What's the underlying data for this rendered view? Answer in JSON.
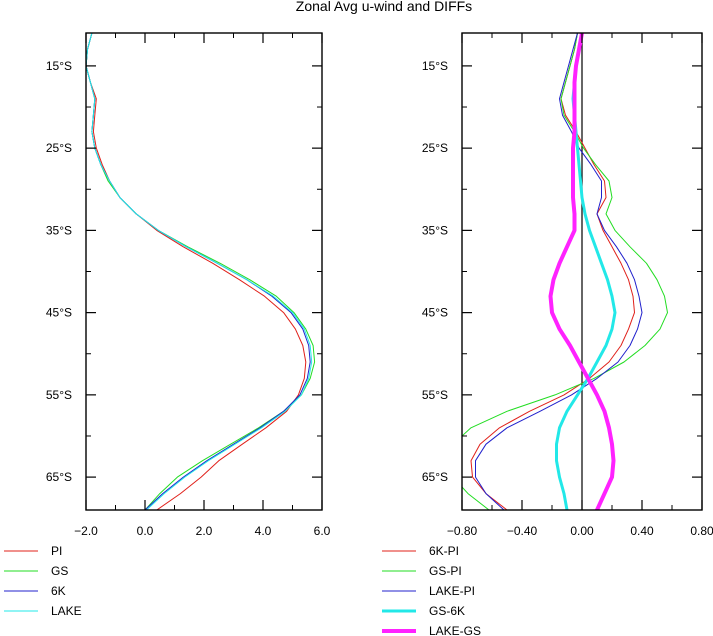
{
  "title": "Zonal Avg u-wind and DIFFs",
  "chart_data": [
    {
      "type": "line",
      "title": "Zonal Avg u-wind and DIFFs",
      "orientation": "profile (value on x-axis, latitude on y-axis)",
      "xlabel": "",
      "ylabel": "",
      "xlim": [
        -2.0,
        6.0
      ],
      "ylim": [
        -69,
        -11
      ],
      "x_ticks": [
        -2.0,
        0.0,
        2.0,
        4.0,
        6.0
      ],
      "x_tick_labels": [
        "−2.0",
        "0.0",
        "2.0",
        "4.0",
        "6.0"
      ],
      "y_ticks": [
        -15,
        -25,
        -35,
        -45,
        -55,
        -65
      ],
      "y_tick_labels": [
        "15°S",
        "25°S",
        "35°S",
        "45°S",
        "55°S",
        "65°S"
      ],
      "zero_line": false,
      "latitudes": [
        -11,
        -13,
        -15,
        -17,
        -19,
        -21,
        -23,
        -25,
        -27,
        -29,
        -31,
        -33,
        -35,
        -37,
        -39,
        -41,
        -43,
        -45,
        -47,
        -49,
        -51,
        -53,
        -55,
        -57,
        -59,
        -61,
        -63,
        -65,
        -67,
        -69
      ],
      "series": [
        {
          "name": "PI",
          "color": "#e0201a",
          "width": 1,
          "values": [
            -1.8,
            -1.95,
            -2.0,
            -1.85,
            -1.65,
            -1.7,
            -1.75,
            -1.65,
            -1.45,
            -1.2,
            -0.85,
            -0.3,
            0.4,
            1.3,
            2.3,
            3.2,
            4.05,
            4.7,
            5.1,
            5.35,
            5.45,
            5.4,
            5.2,
            4.8,
            4.1,
            3.3,
            2.5,
            1.9,
            1.2,
            0.4
          ]
        },
        {
          "name": "GS",
          "color": "#22dd22",
          "width": 1,
          "values": [
            -1.8,
            -1.95,
            -2.0,
            -1.85,
            -1.7,
            -1.75,
            -1.8,
            -1.7,
            -1.5,
            -1.25,
            -0.85,
            -0.3,
            0.45,
            1.45,
            2.55,
            3.55,
            4.45,
            5.05,
            5.45,
            5.7,
            5.75,
            5.6,
            5.3,
            4.7,
            3.85,
            2.9,
            1.95,
            1.1,
            0.5,
            0.0
          ]
        },
        {
          "name": "6K",
          "color": "#2020cc",
          "width": 1,
          "values": [
            -1.8,
            -1.95,
            -2.0,
            -1.85,
            -1.7,
            -1.75,
            -1.8,
            -1.7,
            -1.5,
            -1.2,
            -0.85,
            -0.3,
            0.45,
            1.4,
            2.45,
            3.45,
            4.3,
            4.95,
            5.35,
            5.55,
            5.6,
            5.5,
            5.25,
            4.7,
            3.9,
            3.0,
            2.1,
            1.3,
            0.6,
            0.0
          ]
        },
        {
          "name": "LAKE",
          "color": "#22e8e8",
          "width": 1,
          "values": [
            -1.8,
            -1.95,
            -2.0,
            -1.85,
            -1.7,
            -1.75,
            -1.8,
            -1.7,
            -1.5,
            -1.2,
            -0.85,
            -0.3,
            0.45,
            1.4,
            2.45,
            3.45,
            4.35,
            5.0,
            5.4,
            5.6,
            5.65,
            5.55,
            5.3,
            4.75,
            3.95,
            3.05,
            2.15,
            1.35,
            0.65,
            0.05
          ]
        }
      ],
      "legend": [
        "PI",
        "GS",
        "6K",
        "LAKE"
      ],
      "legend_position": "below-left"
    },
    {
      "type": "line",
      "title": "",
      "orientation": "profile (value on x-axis, latitude on y-axis)",
      "xlabel": "",
      "ylabel": "",
      "xlim": [
        -0.8,
        0.8
      ],
      "ylim": [
        -69,
        -11
      ],
      "x_ticks": [
        -0.8,
        -0.4,
        0.0,
        0.4,
        0.8
      ],
      "x_tick_labels": [
        "−0.80",
        "−0.40",
        "0.00",
        "0.40",
        "0.80"
      ],
      "y_ticks": [
        -15,
        -25,
        -35,
        -45,
        -55,
        -65
      ],
      "y_tick_labels": [
        "15°S",
        "25°S",
        "35°S",
        "45°S",
        "55°S",
        "65°S"
      ],
      "zero_line": true,
      "latitudes": [
        -11,
        -13,
        -15,
        -17,
        -19,
        -21,
        -23,
        -25,
        -27,
        -29,
        -31,
        -33,
        -35,
        -37,
        -39,
        -41,
        -43,
        -45,
        -47,
        -49,
        -51,
        -53,
        -55,
        -57,
        -59,
        -61,
        -63,
        -65,
        -67,
        -69
      ],
      "series": [
        {
          "name": "6K-PI",
          "color": "#e0201a",
          "width": 1,
          "values": [
            -0.03,
            -0.05,
            -0.08,
            -0.11,
            -0.14,
            -0.11,
            -0.04,
            0.02,
            0.08,
            0.15,
            0.16,
            0.1,
            0.14,
            0.2,
            0.26,
            0.31,
            0.34,
            0.35,
            0.31,
            0.26,
            0.18,
            0.05,
            -0.12,
            -0.35,
            -0.55,
            -0.68,
            -0.74,
            -0.73,
            -0.64,
            -0.5
          ]
        },
        {
          "name": "GS-PI",
          "color": "#22dd22",
          "width": 1,
          "values": [
            -0.03,
            -0.05,
            -0.08,
            -0.11,
            -0.14,
            -0.12,
            -0.05,
            0.01,
            0.09,
            0.18,
            0.2,
            0.16,
            0.22,
            0.32,
            0.43,
            0.5,
            0.55,
            0.57,
            0.52,
            0.42,
            0.28,
            0.08,
            -0.18,
            -0.5,
            -0.74,
            -0.86,
            -0.9,
            -0.86,
            -0.76,
            -0.62
          ]
        },
        {
          "name": "LAKE-PI",
          "color": "#2020cc",
          "width": 1,
          "values": [
            -0.03,
            -0.06,
            -0.09,
            -0.12,
            -0.15,
            -0.13,
            -0.07,
            -0.02,
            0.06,
            0.13,
            0.13,
            0.1,
            0.15,
            0.23,
            0.3,
            0.35,
            0.38,
            0.4,
            0.37,
            0.32,
            0.24,
            0.1,
            -0.07,
            -0.28,
            -0.5,
            -0.64,
            -0.71,
            -0.71,
            -0.64,
            -0.52
          ]
        },
        {
          "name": "GS-6K",
          "color": "#22e8e8",
          "width": 3,
          "values": [
            0.0,
            -0.02,
            -0.04,
            -0.05,
            -0.06,
            -0.05,
            -0.04,
            -0.03,
            -0.02,
            -0.01,
            0.0,
            0.02,
            0.05,
            0.09,
            0.13,
            0.17,
            0.2,
            0.22,
            0.2,
            0.16,
            0.1,
            0.04,
            -0.03,
            -0.1,
            -0.15,
            -0.17,
            -0.17,
            -0.15,
            -0.12,
            -0.1
          ]
        },
        {
          "name": "LAKE-GS",
          "color": "#ff22ff",
          "width": 4,
          "values": [
            0.0,
            -0.02,
            -0.04,
            -0.05,
            -0.05,
            -0.05,
            -0.05,
            -0.06,
            -0.06,
            -0.06,
            -0.06,
            -0.05,
            -0.05,
            -0.1,
            -0.15,
            -0.19,
            -0.21,
            -0.2,
            -0.15,
            -0.08,
            -0.02,
            0.04,
            0.1,
            0.15,
            0.18,
            0.2,
            0.21,
            0.2,
            0.15,
            0.1
          ]
        }
      ],
      "legend": [
        "6K-PI",
        "GS-PI",
        "LAKE-PI",
        "GS-6K",
        "LAKE-GS"
      ],
      "legend_position": "below-left"
    }
  ]
}
